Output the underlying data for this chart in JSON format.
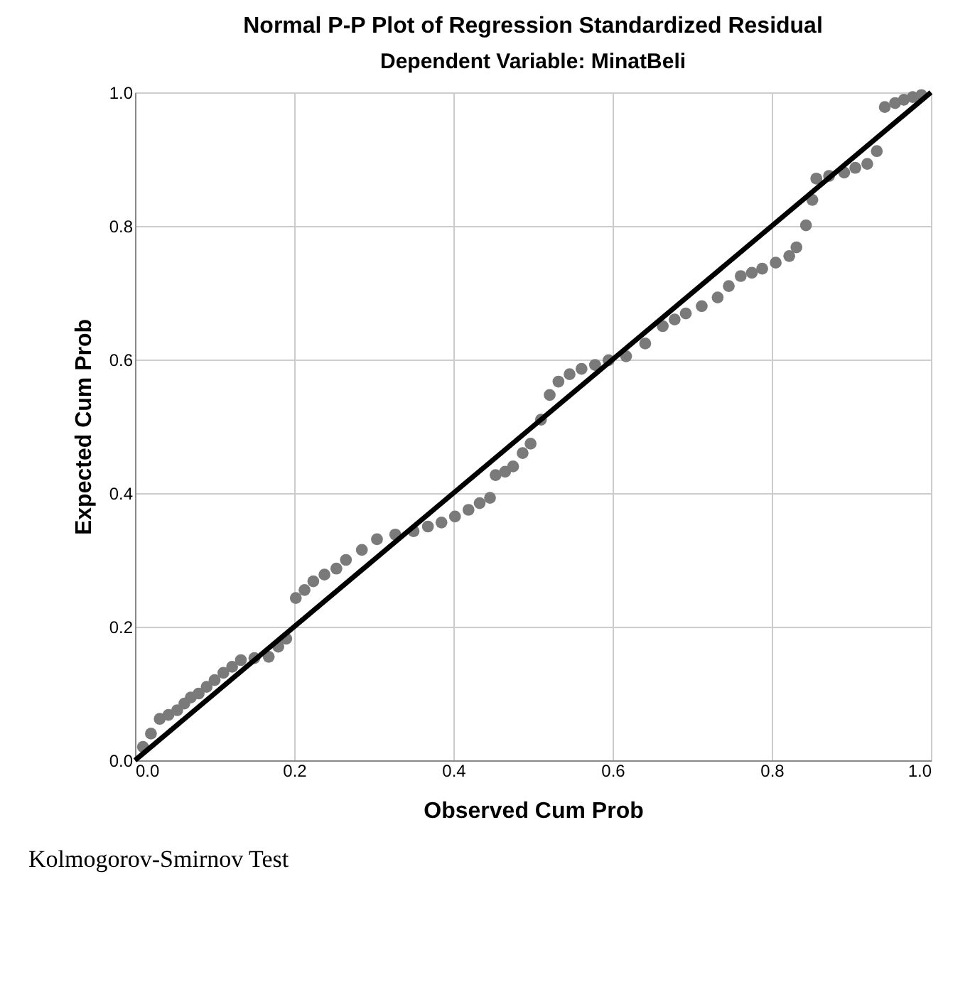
{
  "chart_data": {
    "type": "scatter",
    "title": "Normal P-P Plot of Regression Standardized Residual",
    "subtitle": "Dependent Variable: MinatBeli",
    "xlabel": "Observed Cum Prob",
    "ylabel": "Expected Cum Prob",
    "xlim": [
      0,
      1
    ],
    "ylim": [
      0,
      1
    ],
    "xticks": [
      {
        "value": 0,
        "label": "0.0"
      },
      0.2,
      0.4,
      0.6,
      0.8,
      {
        "value": 1,
        "label": "1.0"
      }
    ],
    "yticks": [
      {
        "value": 0,
        "label": "0.0"
      },
      0.2,
      0.4,
      0.6,
      0.8,
      {
        "value": 1,
        "label": "1.0"
      }
    ],
    "grid": true,
    "annotations": [
      "Kolmogorov-Smirnov Test"
    ],
    "series": [
      {
        "marker": "circle",
        "color": "#7a7a7a",
        "x": [
          0.01,
          0.02,
          0.031,
          0.042,
          0.053,
          0.062,
          0.07,
          0.08,
          0.09,
          0.1,
          0.111,
          0.122,
          0.133,
          0.15,
          0.168,
          0.18,
          0.19,
          0.202,
          0.213,
          0.224,
          0.238,
          0.253,
          0.265,
          0.285,
          0.304,
          0.327,
          0.35,
          0.368,
          0.385,
          0.402,
          0.419,
          0.433,
          0.446,
          0.453,
          0.465,
          0.475,
          0.487,
          0.497,
          0.51,
          0.521,
          0.532,
          0.546,
          0.561,
          0.578,
          0.595,
          0.617,
          0.641,
          0.663,
          0.678,
          0.692,
          0.712,
          0.732,
          0.746,
          0.761,
          0.775,
          0.788,
          0.805,
          0.822,
          0.831,
          0.843,
          0.851,
          0.856,
          0.872,
          0.891,
          0.905,
          0.92,
          0.932,
          0.942,
          0.955,
          0.966,
          0.977,
          0.988
        ],
        "values": [
          0.02,
          0.04,
          0.062,
          0.068,
          0.075,
          0.085,
          0.094,
          0.1,
          0.11,
          0.12,
          0.131,
          0.14,
          0.15,
          0.153,
          0.155,
          0.17,
          0.182,
          0.243,
          0.255,
          0.268,
          0.278,
          0.287,
          0.3,
          0.315,
          0.331,
          0.338,
          0.343,
          0.35,
          0.356,
          0.365,
          0.375,
          0.385,
          0.393,
          0.427,
          0.432,
          0.44,
          0.46,
          0.474,
          0.51,
          0.547,
          0.567,
          0.578,
          0.586,
          0.592,
          0.599,
          0.605,
          0.624,
          0.65,
          0.66,
          0.669,
          0.68,
          0.693,
          0.71,
          0.725,
          0.73,
          0.736,
          0.745,
          0.755,
          0.768,
          0.801,
          0.839,
          0.871,
          0.875,
          0.88,
          0.887,
          0.893,
          0.912,
          0.978,
          0.984,
          0.989,
          0.993,
          0.996
        ]
      },
      {
        "type": "line",
        "marker": "none",
        "line_style": "solid",
        "color": "#000000",
        "x": [
          0,
          1
        ],
        "values": [
          0,
          1
        ]
      }
    ]
  }
}
